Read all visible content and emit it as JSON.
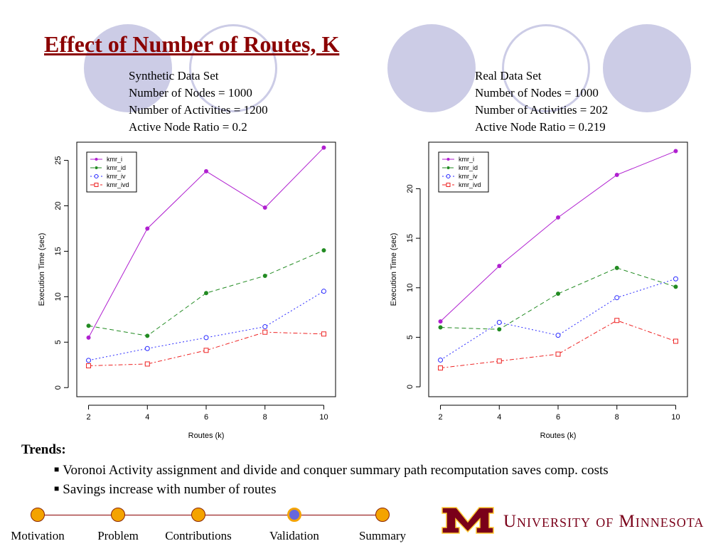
{
  "title": "Effect of Number of Routes, K",
  "left_info": [
    "Synthetic Data Set",
    "Number of Nodes = 1000",
    "Number of Activities = 1200",
    "Active Node Ratio = 0.2"
  ],
  "right_info": [
    "Real Data Set",
    "Number of Nodes = 1000",
    "Number of Activities = 202",
    "Active Node Ratio = 0.219"
  ],
  "trends": {
    "heading": "Trends:",
    "bullets": [
      "Voronoi Activity assignment and divide and conquer summary path recomputation saves comp. costs",
      "Savings increase with number of routes"
    ]
  },
  "nav": {
    "items": [
      "Motivation",
      "Problem",
      "Contributions",
      "Validation",
      "Summary"
    ],
    "active_index": 3
  },
  "logo": {
    "mark": "M",
    "text": "University of Minnesota"
  },
  "colors": {
    "title": "#8b0000",
    "decor": "#cccce6",
    "kmr_i": "#b020d0",
    "kmr_id": "#228b22",
    "kmr_iv": "#2a2aff",
    "kmr_ivd": "#ee2222",
    "umn_maroon": "#7a0019",
    "nav_dot": "#f4a300"
  },
  "chart_data": [
    {
      "type": "line",
      "xlabel": "Routes (k)",
      "ylabel": "Execution Time (sec)",
      "x": [
        2,
        4,
        6,
        8,
        10
      ],
      "xticks": [
        2,
        4,
        6,
        8,
        10
      ],
      "yticks": [
        0,
        5,
        10,
        15,
        20,
        25
      ],
      "xlim": [
        1.6,
        10.4
      ],
      "ylim": [
        -1,
        27
      ],
      "legend": "top-left",
      "series": [
        {
          "name": "kmr_i",
          "values": [
            5.5,
            17.5,
            23.8,
            19.8,
            26.4
          ],
          "color": "#b020d0",
          "dash": "",
          "marker": "dot"
        },
        {
          "name": "kmr_id",
          "values": [
            6.8,
            5.7,
            10.4,
            12.3,
            15.1
          ],
          "color": "#228b22",
          "dash": "6,4",
          "marker": "dot"
        },
        {
          "name": "kmr_iv",
          "values": [
            3.0,
            4.3,
            5.5,
            6.7,
            10.6
          ],
          "color": "#2a2aff",
          "dash": "2,3",
          "marker": "circle"
        },
        {
          "name": "kmr_ivd",
          "values": [
            2.4,
            2.6,
            4.1,
            6.1,
            5.9
          ],
          "color": "#ee2222",
          "dash": "6,3,2,3",
          "marker": "square"
        }
      ]
    },
    {
      "type": "line",
      "xlabel": "Routes (k)",
      "ylabel": "Execution Time (sec)",
      "x": [
        2,
        4,
        6,
        8,
        10
      ],
      "xticks": [
        2,
        4,
        6,
        8,
        10
      ],
      "yticks": [
        0,
        5,
        10,
        15,
        20
      ],
      "xlim": [
        1.6,
        10.4
      ],
      "ylim": [
        -1,
        24.7
      ],
      "legend": "top-left",
      "series": [
        {
          "name": "kmr_i",
          "values": [
            6.6,
            12.2,
            17.1,
            21.4,
            23.8
          ],
          "color": "#b020d0",
          "dash": "",
          "marker": "dot"
        },
        {
          "name": "kmr_id",
          "values": [
            6.0,
            5.8,
            9.4,
            12.0,
            10.1
          ],
          "color": "#228b22",
          "dash": "6,4",
          "marker": "dot"
        },
        {
          "name": "kmr_iv",
          "values": [
            2.7,
            6.5,
            5.2,
            9.0,
            10.9
          ],
          "color": "#2a2aff",
          "dash": "2,3",
          "marker": "circle"
        },
        {
          "name": "kmr_ivd",
          "values": [
            1.9,
            2.6,
            3.3,
            6.7,
            4.6
          ],
          "color": "#ee2222",
          "dash": "6,3,2,3",
          "marker": "square"
        }
      ]
    }
  ]
}
